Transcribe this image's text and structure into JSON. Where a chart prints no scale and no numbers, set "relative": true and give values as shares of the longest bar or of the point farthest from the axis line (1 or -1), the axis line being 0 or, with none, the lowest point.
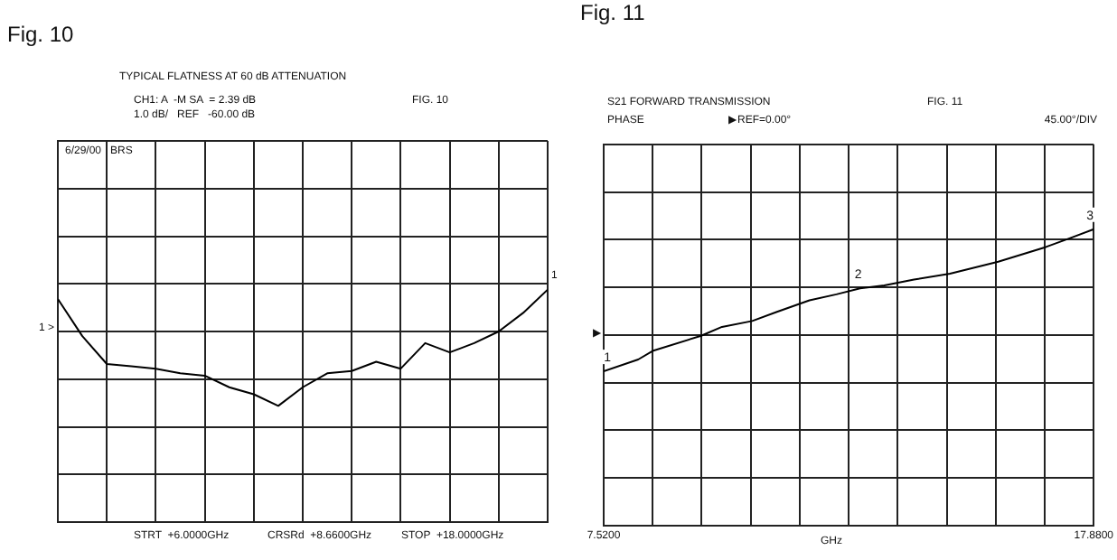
{
  "chart_data": [
    {
      "type": "line",
      "title": "Fig. 10",
      "subtitle": "TYPICAL FLATNESS AT 60 dB ATTENUATION",
      "annotations": [
        "CH1: A  -M SA  = 2.39 dB",
        "1.0 dB/   REF   -60.00 dB",
        "FIG. 10",
        "6/29/00   BRS",
        "STRT  +6.0000GHz",
        "CRSRd  +8.6600GHz",
        "STOP  +18.0000GHz",
        "1 >",
        "1"
      ],
      "categories": [
        null,
        null,
        null,
        null,
        null,
        null,
        null,
        null,
        null,
        null,
        null,
        null,
        null,
        null,
        null,
        null,
        null,
        null,
        null,
        null,
        null
      ],
      "series": [
        {
          "color": "#000000",
          "values": [
            0.96,
            0.8,
            0.68,
            0.67,
            0.66,
            0.64,
            0.63,
            0.58,
            0.55,
            0.5,
            0.58,
            0.64,
            0.65,
            0.69,
            0.66,
            0.77,
            0.73,
            0.77,
            0.82,
            0.9,
            1.0
          ]
        }
      ],
      "relative": true,
      "grid": true,
      "tick_labels": false,
      "marker": "none",
      "line_style": "solid"
    },
    {
      "type": "line",
      "title": "Fig. 11",
      "subtitle": "S21 FORWARD TRANSMISSION",
      "xlabel": "GHz",
      "annotations": [
        "FIG. 11",
        "PHASE",
        "▶REF=0.00°",
        "45.00°/DIV",
        "▶",
        {
          "text": "1",
          "x": 7.6,
          "y": 0.52
        },
        {
          "text": "2",
          "x": 12.9,
          "y": 0.8
        },
        {
          "text": "3",
          "x": 17.8,
          "y": 1.0
        }
      ],
      "x": [
        7.52,
        8.25,
        8.57,
        9.58,
        10.02,
        10.66,
        11.17,
        11.87,
        12.44,
        12.94,
        13.45,
        14.08,
        14.84,
        15.86,
        16.87,
        17.38,
        17.88
      ],
      "series": [
        {
          "color": "#000000",
          "values": [
            0.52,
            0.56,
            0.59,
            0.64,
            0.67,
            0.69,
            0.72,
            0.76,
            0.78,
            0.8,
            0.81,
            0.83,
            0.85,
            0.89,
            0.94,
            0.97,
            1.0
          ]
        }
      ],
      "xlim": [
        7.52,
        17.88
      ],
      "xticks": [
        {
          "value": 7.52,
          "label": "7.5200"
        },
        {
          "value": 8.556,
          "label": null
        },
        {
          "value": 9.592,
          "label": null
        },
        {
          "value": 10.628,
          "label": null
        },
        {
          "value": 11.664,
          "label": null
        },
        {
          "value": 12.7,
          "label": null
        },
        {
          "value": 13.736,
          "label": null
        },
        {
          "value": 14.772,
          "label": null
        },
        {
          "value": 15.808,
          "label": null
        },
        {
          "value": 16.844,
          "label": null
        },
        {
          "value": 17.88,
          "label": "17.8800"
        }
      ],
      "relative": true,
      "grid": true,
      "tick_labels": "x",
      "marker": "none",
      "line_style": "solid"
    }
  ]
}
